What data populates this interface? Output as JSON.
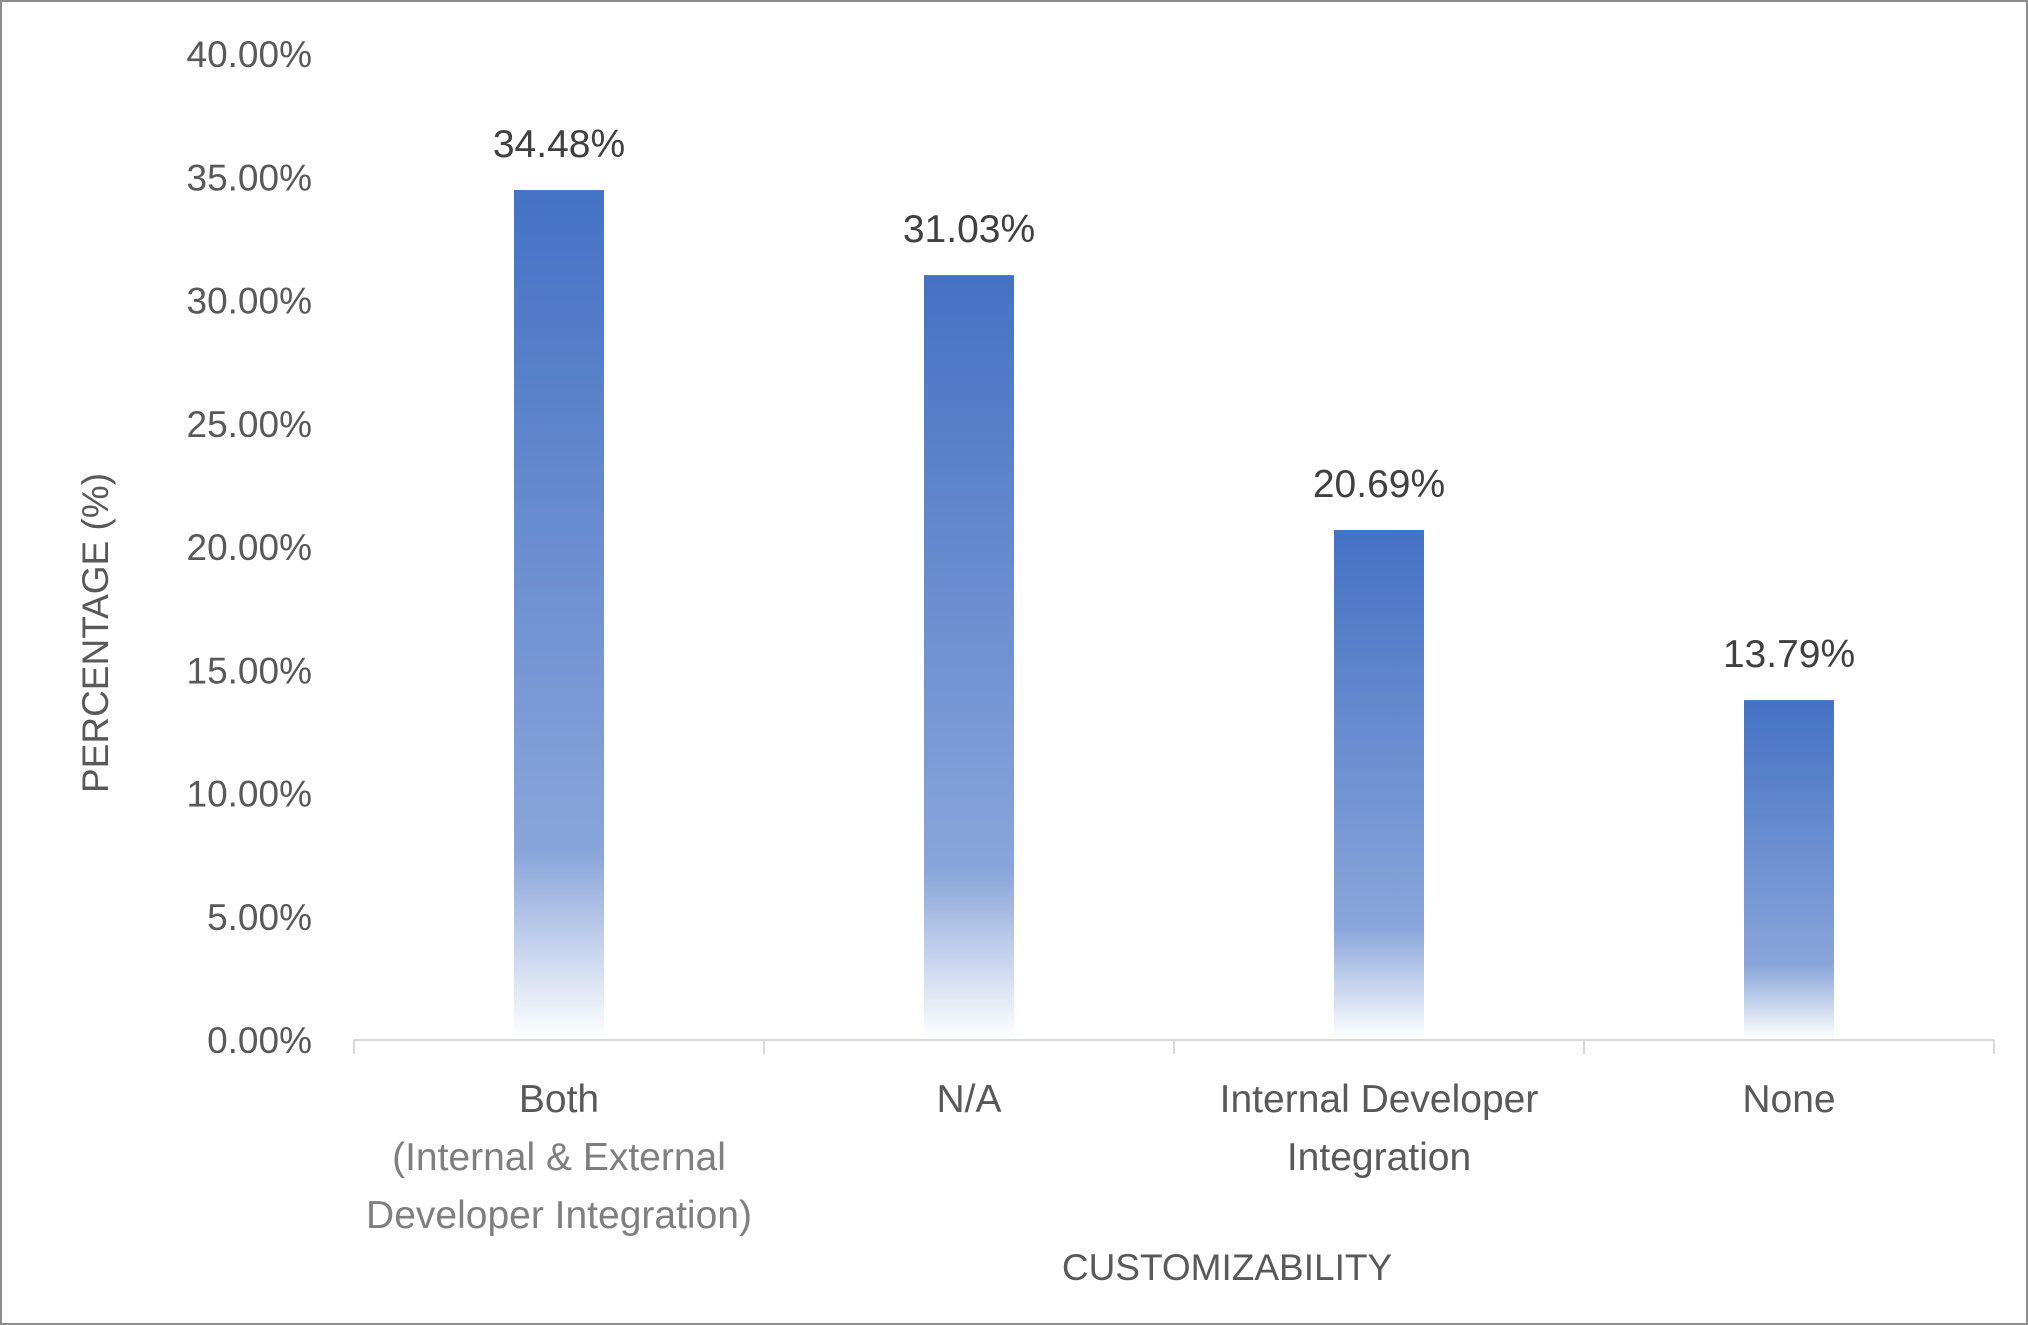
{
  "chart_data": {
    "type": "bar",
    "title": "",
    "xlabel": "CUSTOMIZABILITY",
    "ylabel": "PERCENTAGE (%)",
    "ylim": [
      0,
      40
    ],
    "yticks": [
      0,
      5,
      10,
      15,
      20,
      25,
      30,
      35,
      40
    ],
    "ytick_labels": [
      "0.00%",
      "5.00%",
      "10.00%",
      "15.00%",
      "20.00%",
      "25.00%",
      "30.00%",
      "35.00%",
      "40.00%"
    ],
    "categories": [
      "Both (Internal  & External Developer Integration)",
      "N/A",
      "Internal Developer Integration",
      "None"
    ],
    "category_label_lines": [
      [
        "Both",
        "(Internal  & External",
        "Developer Integration)"
      ],
      [
        "N/A"
      ],
      [
        "Internal Developer",
        "Integration"
      ],
      [
        "None"
      ]
    ],
    "values": [
      34.48,
      31.03,
      20.69,
      13.79
    ],
    "value_labels": [
      "34.48%",
      "31.03%",
      "20.69%",
      "13.79%"
    ],
    "grid": false,
    "legend": "none",
    "bar_color_top": "#4472c4",
    "bar_color_fade": "#ffffff"
  }
}
